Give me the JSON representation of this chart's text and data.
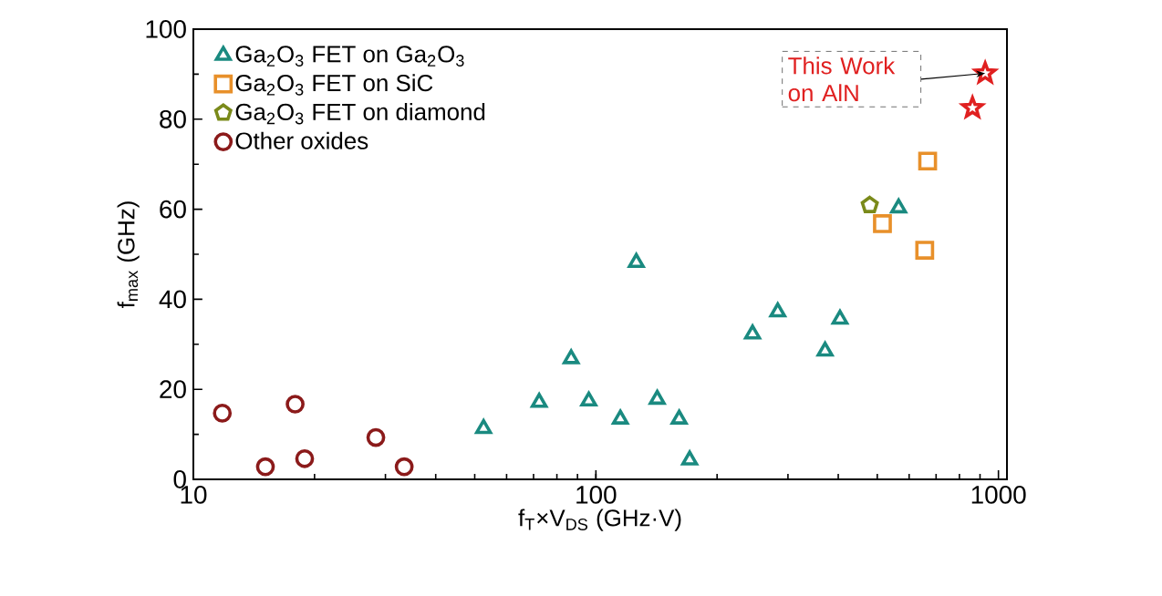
{
  "chart_data": {
    "type": "scatter",
    "xlabel": "f$_{T}$×V$_{DS}$ (GHz·V)",
    "ylabel": "f$_{max}$ (GHz)",
    "log": "x",
    "xlim": [
      10,
      1050
    ],
    "xticks": [
      10,
      100,
      1000
    ],
    "ylim": [
      0,
      100
    ],
    "yticks": [
      0,
      20,
      40,
      60,
      80,
      100
    ],
    "grid": false,
    "legend": "top left",
    "series": [
      {
        "name": "Ga$_{2}$O$_{3}$ FET on Ga$_{2}$O$_{3}$",
        "color": "#1a8a80",
        "marker": "triangle",
        "x": [
          52.6,
          72.3,
          86.8,
          96,
          115,
          126,
          142,
          161,
          171,
          245,
          283,
          371,
          404,
          565
        ],
        "values": [
          11.3,
          17.1,
          26.8,
          17.4,
          13.4,
          48.2,
          17.8,
          13.4,
          4.3,
          32.3,
          37.2,
          28.5,
          35.6,
          60.3
        ]
      },
      {
        "name": "Ga$_{2}$O$_{3}$ FET on SiC",
        "color": "#e8902a",
        "marker": "square",
        "x": [
          515,
          667,
          656
        ],
        "values": [
          56.8,
          70.7,
          50.9
        ]
      },
      {
        "name": "Ga$_{2}$O$_{3}$ FET on diamond",
        "color": "#7a8a1a",
        "x": [
          479
        ],
        "values": [
          60.9
        ]
      },
      {
        "name": "Other oxides",
        "color": "#8b1a1a",
        "marker": "circle",
        "x": [
          11.8,
          15.1,
          17.9,
          18.9,
          28.4,
          33.4
        ],
        "values": [
          14.7,
          2.8,
          16.7,
          4.6,
          9.3,
          2.8
        ]
      },
      {
        "color": "#e02020",
        "marker": "star",
        "x": [
          927,
          862
        ],
        "values": [
          90.2,
          82.5
        ]
      }
    ],
    "annotations": [
      {
        "text": "This Work on AlN",
        "x": 927,
        "y": 90.2
      }
    ]
  }
}
